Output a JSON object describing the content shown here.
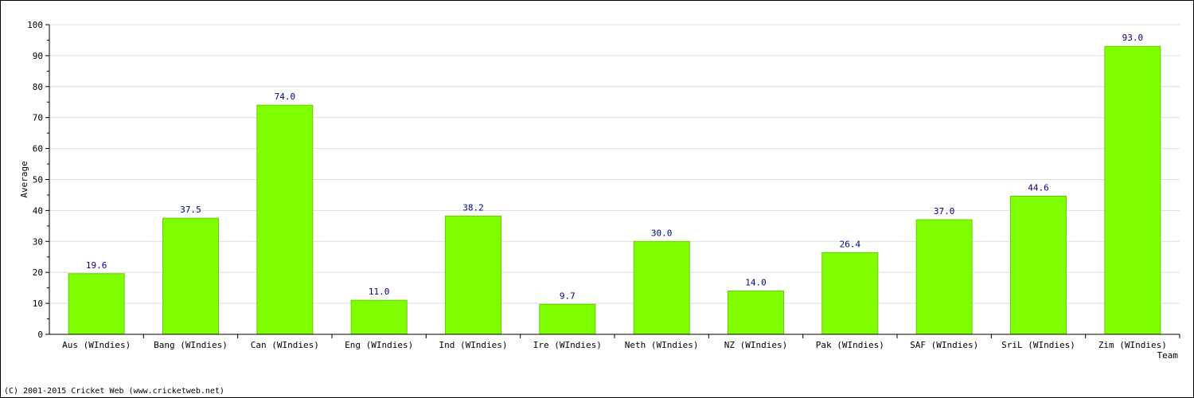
{
  "chart_data": {
    "type": "bar",
    "categories": [
      "Aus (WIndies)",
      "Bang (WIndies)",
      "Can (WIndies)",
      "Eng (WIndies)",
      "Ind (WIndies)",
      "Ire (WIndies)",
      "Neth (WIndies)",
      "NZ (WIndies)",
      "Pak (WIndies)",
      "SAF (WIndies)",
      "SriL (WIndies)",
      "Zim (WIndies)"
    ],
    "values": [
      19.6,
      37.5,
      74.0,
      11.0,
      38.2,
      9.7,
      30.0,
      14.0,
      26.4,
      37.0,
      44.6,
      93.0
    ],
    "value_labels": [
      "19.6",
      "37.5",
      "74.0",
      "11.0",
      "38.2",
      "9.7",
      "30.0",
      "14.0",
      "26.4",
      "37.0",
      "44.6",
      "93.0"
    ],
    "xlabel": "Team",
    "ylabel": "Average",
    "ylim": [
      0,
      100
    ],
    "yticks": [
      "0",
      "10",
      "20",
      "30",
      "40",
      "50",
      "60",
      "70",
      "80",
      "90",
      "100"
    ],
    "grid": true,
    "colors": {
      "bar": "#80ff00",
      "bar_edge": "#66cc00",
      "value_label": "#000080",
      "grid": "#dddddd",
      "axis": "#000000"
    }
  },
  "footer": {
    "copyright": "(C) 2001-2015 Cricket Web (www.cricketweb.net)"
  }
}
